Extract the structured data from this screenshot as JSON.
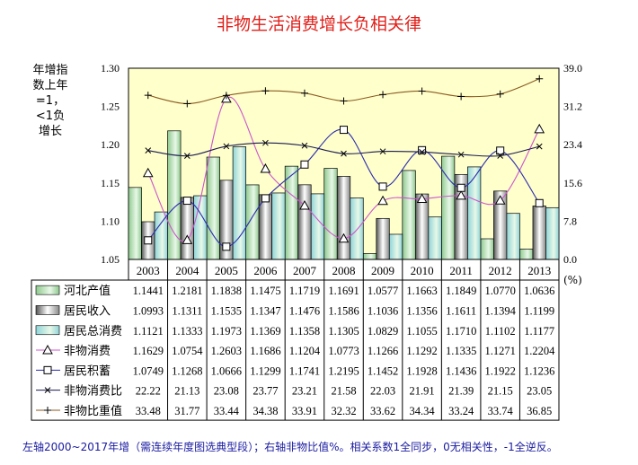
{
  "chart_data": {
    "type": "bar",
    "title": "非物生活消费增长负相关律",
    "ylabel": "年增指数上年=1，<1负增长",
    "y2label": "(%)",
    "ylim": [
      1.05,
      1.3
    ],
    "yticks": [
      "1.30",
      "1.25",
      "1.20",
      "1.15",
      "1.10",
      "1.05"
    ],
    "y2lim": [
      0,
      39
    ],
    "y2ticks": [
      "39.0",
      "31.2",
      "23.4",
      "15.6",
      "7.8",
      "0.0"
    ],
    "categories": [
      "2003",
      "2004",
      "2005",
      "2006",
      "2007",
      "2008",
      "2009",
      "2010",
      "2011",
      "2012",
      "2013"
    ],
    "series": [
      {
        "name": "河北产值",
        "kind": "bar",
        "axis": "left",
        "color": "#8fc98f",
        "values": [
          1.1441,
          1.2181,
          1.1838,
          1.1475,
          1.1719,
          1.1691,
          1.0577,
          1.1663,
          1.1849,
          1.077,
          1.0636
        ]
      },
      {
        "name": "居民收入",
        "kind": "bar",
        "axis": "left",
        "color": "#c8c8c8",
        "values": [
          1.0993,
          1.1311,
          1.1535,
          1.1347,
          1.1476,
          1.1586,
          1.1036,
          1.1356,
          1.1611,
          1.1394,
          1.1199
        ]
      },
      {
        "name": "居民总消费",
        "kind": "bar",
        "axis": "left",
        "color": "#8fd4d8",
        "values": [
          1.1121,
          1.1333,
          1.1973,
          1.1369,
          1.1358,
          1.1305,
          1.0829,
          1.1055,
          1.171,
          1.1102,
          1.1177
        ]
      },
      {
        "name": "非物消费",
        "kind": "line",
        "axis": "left",
        "marker": "triangle",
        "color": "#cc55cc",
        "values": [
          1.1629,
          1.0754,
          1.2603,
          1.1686,
          1.1204,
          1.0773,
          1.1266,
          1.1292,
          1.1335,
          1.1271,
          1.2204
        ]
      },
      {
        "name": "居民积蓄",
        "kind": "line",
        "axis": "left",
        "marker": "square",
        "color": "#2a2ab0",
        "values": [
          1.0749,
          1.1268,
          1.0666,
          1.1299,
          1.1741,
          1.2195,
          1.1452,
          1.1928,
          1.1436,
          1.1922,
          1.1236
        ]
      },
      {
        "name": "非物消费比",
        "kind": "line",
        "axis": "right",
        "marker": "x",
        "color": "#1a1a50",
        "values": [
          "22.22",
          "21.13",
          "23.08",
          "23.77",
          "23.21",
          "21.58",
          "22.03",
          "21.91",
          "21.39",
          "21.15",
          "23.05"
        ]
      },
      {
        "name": "非物比重值",
        "kind": "line",
        "axis": "right",
        "marker": "plus",
        "color": "#8a5a20",
        "values": [
          "33.48",
          "31.77",
          "33.44",
          "34.38",
          "33.91",
          "32.32",
          "33.62",
          "34.34",
          "33.24",
          "33.74",
          "36.85"
        ]
      }
    ],
    "legend": "data-table",
    "grid": false,
    "plot_background": "#ffffcc",
    "note": "左轴2000~2017年增（需连续年度图选典型段）；右轴非物比值%。相关系数1全同步，0无相关性，-1全逆反。"
  }
}
